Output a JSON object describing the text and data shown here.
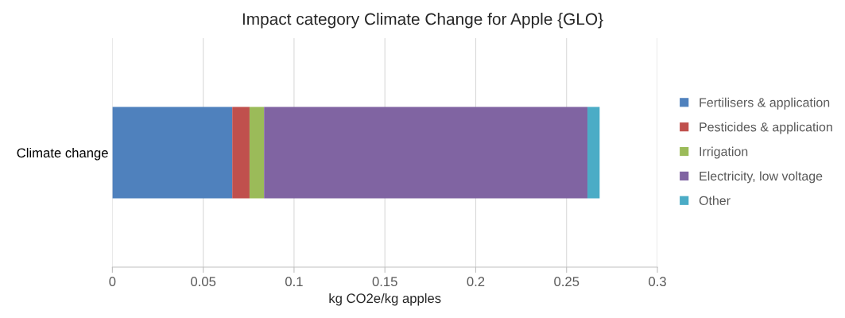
{
  "chart_data": {
    "type": "bar",
    "orientation": "horizontal",
    "stacked": true,
    "title": "Impact category Climate Change for Apple {GLO}",
    "xlabel": "kg CO2e/kg apples",
    "categories": [
      "Climate change"
    ],
    "series": [
      {
        "name": "Fertilisers & application",
        "color": "#4f81bd",
        "values": [
          0.066
        ]
      },
      {
        "name": "Pesticides & application",
        "color": "#c0504d",
        "values": [
          0.0095
        ]
      },
      {
        "name": "Irrigation",
        "color": "#9bbb59",
        "values": [
          0.008
        ]
      },
      {
        "name": "Electricity, low voltage",
        "color": "#8064a2",
        "values": [
          0.178
        ]
      },
      {
        "name": "Other",
        "color": "#4bacc6",
        "values": [
          0.0067
        ]
      }
    ],
    "xlim": [
      0,
      0.3
    ],
    "xticks": [
      0,
      0.05,
      0.1,
      0.15,
      0.2,
      0.25,
      0.3
    ],
    "grid": "x",
    "legend": "right"
  }
}
